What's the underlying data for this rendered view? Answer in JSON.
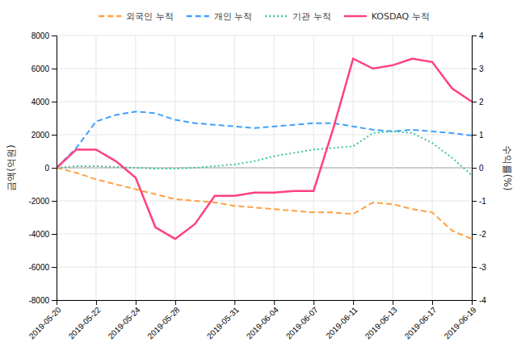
{
  "chart_data": {
    "type": "line",
    "categories": [
      "2019-05-20",
      null,
      "2019-05-22",
      null,
      "2019-05-24",
      null,
      "2019-05-28",
      null,
      null,
      "2019-05-31",
      null,
      "2019-06-04",
      null,
      "2019-06-07",
      null,
      "2019-06-11",
      null,
      "2019-06-13",
      null,
      "2019-06-17",
      null,
      "2019-06-19"
    ],
    "series": [
      {
        "name": "외국인 누적",
        "color": "#FFA040",
        "line_style": "dashed",
        "values": [
          0,
          -300,
          -700,
          -1000,
          -1300,
          -1600,
          -1900,
          -2000,
          -2100,
          -2300,
          -2400,
          -2500,
          -2600,
          -2700,
          -2700,
          -2800,
          -2100,
          -2200,
          -2500,
          -2700,
          -3800,
          -4300
        ]
      },
      {
        "name": "개인 누적",
        "color": "#40A0FF",
        "line_style": "dashed",
        "values": [
          0,
          1200,
          2800,
          3200,
          3400,
          3300,
          2900,
          2700,
          2600,
          2500,
          2400,
          2500,
          2600,
          2700,
          2700,
          2500,
          2300,
          2200,
          2300,
          2200,
          2100,
          1950
        ]
      },
      {
        "name": "기관 누적",
        "color": "#40C0A0",
        "line_style": "dotted",
        "values": [
          0,
          100,
          100,
          50,
          0,
          -50,
          -50,
          0,
          100,
          200,
          400,
          700,
          900,
          1100,
          1200,
          1300,
          2100,
          2200,
          2100,
          1500,
          600,
          -450
        ]
      },
      {
        "name": "KOSDAQ 누적",
        "color": "#FF4080",
        "line_style": "solid",
        "axis": "y2",
        "values": [
          0,
          0.55,
          0.55,
          0.2,
          -0.3,
          -1.8,
          -2.15,
          -1.7,
          -0.85,
          -0.85,
          -0.75,
          -0.75,
          -0.7,
          -0.7,
          1.2,
          3.3,
          3.0,
          3.1,
          3.3,
          3.2,
          2.4,
          2.0
        ]
      }
    ],
    "ylabel": "금액(억원)",
    "y2label": "수익률(%)",
    "ylim": [
      -8000,
      8000
    ],
    "yticks": [
      -8000,
      -6000,
      -4000,
      -2000,
      0,
      2000,
      4000,
      6000,
      8000
    ],
    "y2lim": [
      -4,
      4
    ],
    "y2ticks": [
      -4,
      -3,
      -2,
      -1,
      0,
      1,
      2,
      3,
      4
    ],
    "grid": true,
    "legend": "top"
  }
}
